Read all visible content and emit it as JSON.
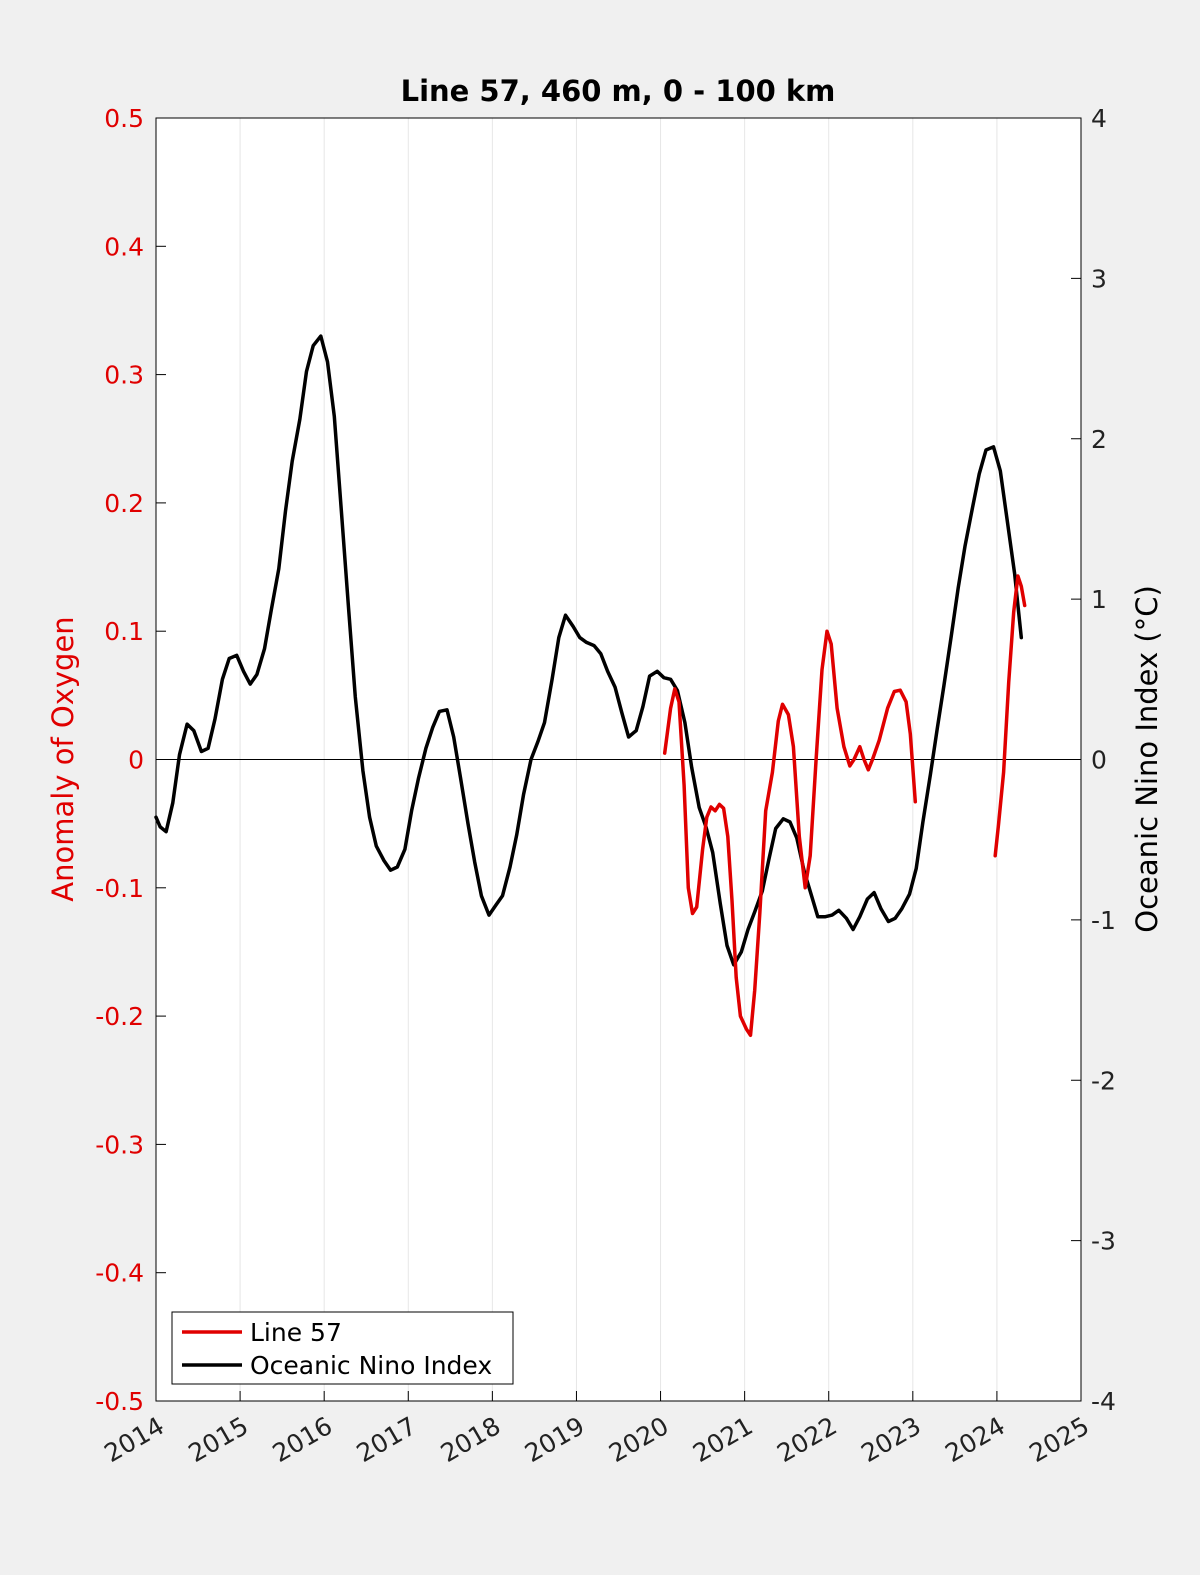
{
  "chart_data": {
    "type": "line",
    "title": "Line 57, 460 m, 0 - 100 km",
    "ylabel_left": "Anomaly of Oxygen",
    "ylabel_right": "Oceanic Nino Index (°C)",
    "xlim": [
      2014,
      2025
    ],
    "ylim_left": [
      -0.5,
      0.5
    ],
    "ylim_right": [
      -4,
      4
    ],
    "x_ticks": [
      "2014",
      "2015",
      "2016",
      "2017",
      "2018",
      "2019",
      "2020",
      "2021",
      "2022",
      "2023",
      "2024",
      "2025"
    ],
    "y_left_ticks": [
      "0.5",
      "0.4",
      "0.3",
      "0.2",
      "0.1",
      "0",
      "-0.1",
      "-0.2",
      "-0.3",
      "-0.4",
      "-0.5"
    ],
    "y_right_ticks": [
      "4",
      "3",
      "2",
      "1",
      "0",
      "-1",
      "-2",
      "-3",
      "-4"
    ],
    "grid": "vertical",
    "legend_position": "bottom-left",
    "colors": {
      "line57": "#e00000",
      "oni": "#000000"
    },
    "series": [
      {
        "name": "Line 57",
        "axis": "left",
        "segments": [
          [
            [
              2020.05,
              0.005
            ],
            [
              2020.12,
              0.04
            ],
            [
              2020.17,
              0.055
            ],
            [
              2020.22,
              0.045
            ],
            [
              2020.28,
              -0.02
            ],
            [
              2020.33,
              -0.1
            ],
            [
              2020.38,
              -0.12
            ],
            [
              2020.43,
              -0.115
            ],
            [
              2020.5,
              -0.07
            ],
            [
              2020.55,
              -0.045
            ],
            [
              2020.6,
              -0.037
            ],
            [
              2020.65,
              -0.04
            ],
            [
              2020.7,
              -0.035
            ],
            [
              2020.75,
              -0.038
            ],
            [
              2020.8,
              -0.06
            ],
            [
              2020.85,
              -0.11
            ],
            [
              2020.9,
              -0.17
            ],
            [
              2020.95,
              -0.2
            ],
            [
              2021.02,
              -0.21
            ],
            [
              2021.07,
              -0.215
            ],
            [
              2021.12,
              -0.18
            ],
            [
              2021.18,
              -0.12
            ],
            [
              2021.25,
              -0.04
            ],
            [
              2021.33,
              -0.01
            ],
            [
              2021.4,
              0.03
            ],
            [
              2021.45,
              0.043
            ],
            [
              2021.52,
              0.035
            ],
            [
              2021.58,
              0.01
            ],
            [
              2021.65,
              -0.06
            ],
            [
              2021.72,
              -0.1
            ],
            [
              2021.78,
              -0.075
            ],
            [
              2021.85,
              0.0
            ],
            [
              2021.92,
              0.07
            ],
            [
              2021.98,
              0.1
            ],
            [
              2022.03,
              0.09
            ],
            [
              2022.1,
              0.04
            ],
            [
              2022.18,
              0.01
            ],
            [
              2022.25,
              -0.005
            ],
            [
              2022.3,
              0.0
            ],
            [
              2022.37,
              0.01
            ],
            [
              2022.42,
              0.0
            ],
            [
              2022.47,
              -0.008
            ],
            [
              2022.52,
              0.0
            ],
            [
              2022.6,
              0.015
            ],
            [
              2022.7,
              0.04
            ],
            [
              2022.78,
              0.053
            ],
            [
              2022.85,
              0.054
            ],
            [
              2022.92,
              0.045
            ],
            [
              2022.97,
              0.02
            ],
            [
              2023.03,
              -0.033
            ]
          ],
          [
            [
              2023.98,
              -0.075
            ],
            [
              2024.02,
              -0.05
            ],
            [
              2024.08,
              -0.01
            ],
            [
              2024.14,
              0.06
            ],
            [
              2024.2,
              0.115
            ],
            [
              2024.25,
              0.143
            ],
            [
              2024.29,
              0.135
            ],
            [
              2024.33,
              0.12
            ]
          ]
        ]
      },
      {
        "name": "Oceanic Nino Index",
        "axis": "right",
        "points": [
          [
            2014.0,
            -0.36
          ],
          [
            2014.05,
            -0.42
          ],
          [
            2014.12,
            -0.45
          ],
          [
            2014.2,
            -0.27
          ],
          [
            2014.28,
            0.03
          ],
          [
            2014.37,
            0.22
          ],
          [
            2014.45,
            0.18
          ],
          [
            2014.54,
            0.05
          ],
          [
            2014.62,
            0.07
          ],
          [
            2014.7,
            0.25
          ],
          [
            2014.79,
            0.5
          ],
          [
            2014.87,
            0.63
          ],
          [
            2014.96,
            0.65
          ],
          [
            2015.04,
            0.55
          ],
          [
            2015.12,
            0.47
          ],
          [
            2015.2,
            0.53
          ],
          [
            2015.29,
            0.69
          ],
          [
            2015.37,
            0.93
          ],
          [
            2015.46,
            1.19
          ],
          [
            2015.54,
            1.55
          ],
          [
            2015.62,
            1.86
          ],
          [
            2015.71,
            2.12
          ],
          [
            2015.79,
            2.42
          ],
          [
            2015.87,
            2.58
          ],
          [
            2015.96,
            2.64
          ],
          [
            2016.04,
            2.48
          ],
          [
            2016.12,
            2.14
          ],
          [
            2016.2,
            1.58
          ],
          [
            2016.29,
            0.94
          ],
          [
            2016.37,
            0.39
          ],
          [
            2016.46,
            -0.07
          ],
          [
            2016.54,
            -0.36
          ],
          [
            2016.62,
            -0.54
          ],
          [
            2016.71,
            -0.63
          ],
          [
            2016.79,
            -0.69
          ],
          [
            2016.87,
            -0.67
          ],
          [
            2016.96,
            -0.56
          ],
          [
            2017.04,
            -0.32
          ],
          [
            2017.12,
            -0.12
          ],
          [
            2017.21,
            0.07
          ],
          [
            2017.29,
            0.2
          ],
          [
            2017.37,
            0.3
          ],
          [
            2017.46,
            0.31
          ],
          [
            2017.54,
            0.14
          ],
          [
            2017.62,
            -0.11
          ],
          [
            2017.71,
            -0.4
          ],
          [
            2017.79,
            -0.64
          ],
          [
            2017.87,
            -0.85
          ],
          [
            2017.96,
            -0.97
          ],
          [
            2018.04,
            -0.91
          ],
          [
            2018.12,
            -0.85
          ],
          [
            2018.21,
            -0.67
          ],
          [
            2018.29,
            -0.47
          ],
          [
            2018.37,
            -0.22
          ],
          [
            2018.46,
            0.0
          ],
          [
            2018.54,
            0.11
          ],
          [
            2018.62,
            0.23
          ],
          [
            2018.71,
            0.5
          ],
          [
            2018.79,
            0.76
          ],
          [
            2018.87,
            0.9
          ],
          [
            2018.96,
            0.83
          ],
          [
            2019.04,
            0.76
          ],
          [
            2019.12,
            0.73
          ],
          [
            2019.21,
            0.71
          ],
          [
            2019.29,
            0.66
          ],
          [
            2019.37,
            0.55
          ],
          [
            2019.46,
            0.45
          ],
          [
            2019.54,
            0.29
          ],
          [
            2019.62,
            0.14
          ],
          [
            2019.71,
            0.18
          ],
          [
            2019.79,
            0.33
          ],
          [
            2019.87,
            0.52
          ],
          [
            2019.96,
            0.55
          ],
          [
            2020.04,
            0.51
          ],
          [
            2020.12,
            0.5
          ],
          [
            2020.2,
            0.43
          ],
          [
            2020.29,
            0.23
          ],
          [
            2020.37,
            -0.05
          ],
          [
            2020.46,
            -0.3
          ],
          [
            2020.54,
            -0.42
          ],
          [
            2020.62,
            -0.58
          ],
          [
            2020.71,
            -0.9
          ],
          [
            2020.79,
            -1.16
          ],
          [
            2020.87,
            -1.28
          ],
          [
            2020.96,
            -1.2
          ],
          [
            2021.04,
            -1.06
          ],
          [
            2021.12,
            -0.95
          ],
          [
            2021.21,
            -0.82
          ],
          [
            2021.29,
            -0.62
          ],
          [
            2021.37,
            -0.43
          ],
          [
            2021.46,
            -0.37
          ],
          [
            2021.54,
            -0.39
          ],
          [
            2021.62,
            -0.49
          ],
          [
            2021.71,
            -0.7
          ],
          [
            2021.79,
            -0.84
          ],
          [
            2021.87,
            -0.98
          ],
          [
            2021.96,
            -0.98
          ],
          [
            2022.04,
            -0.97
          ],
          [
            2022.12,
            -0.94
          ],
          [
            2022.21,
            -0.99
          ],
          [
            2022.29,
            -1.06
          ],
          [
            2022.37,
            -0.98
          ],
          [
            2022.46,
            -0.87
          ],
          [
            2022.54,
            -0.83
          ],
          [
            2022.62,
            -0.93
          ],
          [
            2022.71,
            -1.01
          ],
          [
            2022.79,
            -0.99
          ],
          [
            2022.87,
            -0.93
          ],
          [
            2022.96,
            -0.84
          ],
          [
            2023.04,
            -0.68
          ],
          [
            2023.12,
            -0.39
          ],
          [
            2023.21,
            -0.09
          ],
          [
            2023.29,
            0.19
          ],
          [
            2023.37,
            0.46
          ],
          [
            2023.46,
            0.78
          ],
          [
            2023.54,
            1.07
          ],
          [
            2023.62,
            1.33
          ],
          [
            2023.71,
            1.57
          ],
          [
            2023.79,
            1.78
          ],
          [
            2023.87,
            1.93
          ],
          [
            2023.96,
            1.95
          ],
          [
            2024.04,
            1.8
          ],
          [
            2024.12,
            1.5
          ],
          [
            2024.21,
            1.16
          ],
          [
            2024.29,
            0.76
          ]
        ]
      }
    ]
  }
}
